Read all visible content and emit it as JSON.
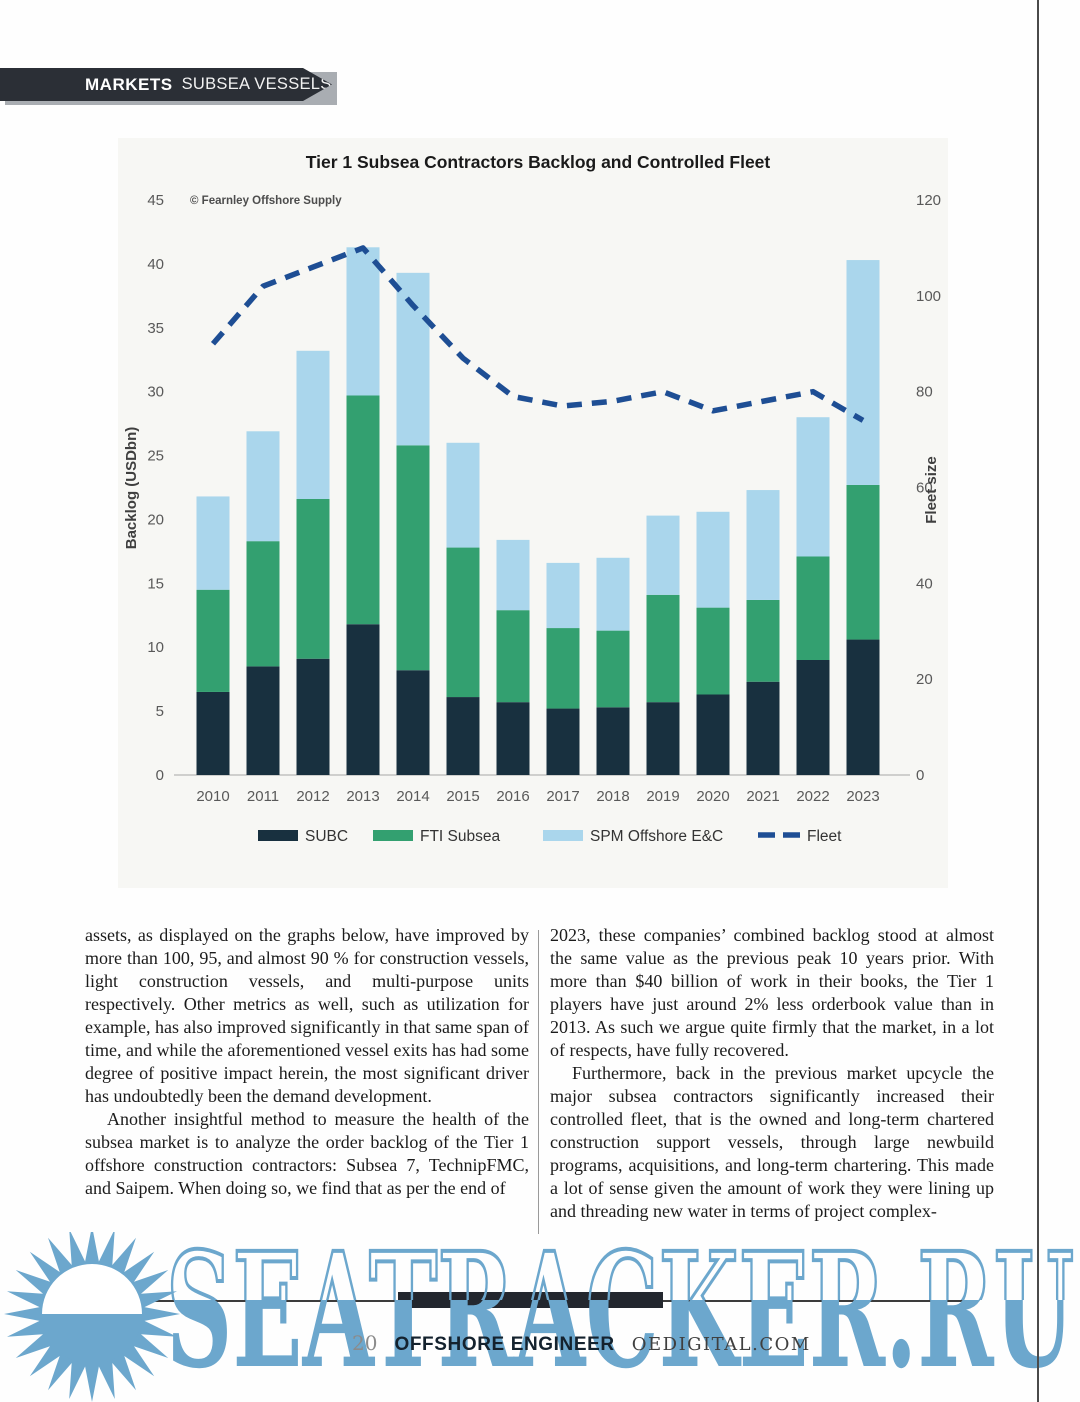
{
  "header": {
    "markets_label": "MARKETS",
    "section_label": "SUBSEA VESSELS"
  },
  "chart_data": {
    "type": "bar",
    "subtype": "stacked bars with overlay line",
    "title": "Tier 1 Subsea Contractors Backlog and Controlled Fleet",
    "source_note": "© Fearnley Offshore Supply",
    "ylabel_left": "Backlog (USDbn)",
    "ylabel_right": "Fleet size",
    "ylim_left": [
      0,
      45
    ],
    "ylim_right": [
      0,
      120
    ],
    "yticks_left": [
      0,
      5,
      10,
      15,
      20,
      25,
      30,
      35,
      40,
      45
    ],
    "yticks_right": [
      0,
      20,
      40,
      60,
      80,
      100,
      120
    ],
    "grid": "off",
    "legend_position": "bottom",
    "categories": [
      "2010",
      "2011",
      "2012",
      "2013",
      "2014",
      "2015",
      "2016",
      "2017",
      "2018",
      "2019",
      "2020",
      "2021",
      "2022",
      "2023"
    ],
    "series": [
      {
        "name": "SUBC",
        "type": "bar",
        "color": "#18303f",
        "values": [
          6.5,
          8.5,
          9.1,
          11.8,
          8.2,
          6.1,
          5.7,
          5.2,
          5.3,
          5.7,
          6.3,
          7.3,
          9.0,
          10.6
        ]
      },
      {
        "name": "FTI Subsea",
        "type": "bar",
        "color": "#33a070",
        "values": [
          8.0,
          9.8,
          12.5,
          17.9,
          17.6,
          11.7,
          7.2,
          6.3,
          6.0,
          8.4,
          6.8,
          6.4,
          8.1,
          12.1
        ]
      },
      {
        "name": "SPM Offshore E&C",
        "type": "bar",
        "color": "#aad6ec",
        "values": [
          7.3,
          8.6,
          11.6,
          11.6,
          13.5,
          8.2,
          5.5,
          5.1,
          5.7,
          6.2,
          7.5,
          8.6,
          10.9,
          17.6
        ]
      },
      {
        "name": "Fleet",
        "type": "line",
        "axis": "right",
        "color": "#1e4e94",
        "dash": true,
        "values": [
          90,
          102,
          106,
          110,
          98,
          87,
          79,
          77,
          78,
          80,
          76,
          78,
          80,
          74
        ]
      }
    ]
  },
  "article": {
    "left_column": {
      "p1": "assets, as displayed on the graphs below, have improved by more than 100, 95, and almost 90 % for construction vessels, light construction vessels, and multi-purpose units respectively. Other metrics as well, such as utilization for example, has also improved significantly in that same span of time, and while the aforementioned vessel exits has had some degree of positive impact herein, the most significant driver has undoubtedly been the demand development.",
      "p2": "Another insightful method to measure the health of the subsea market is to analyze the order backlog of the Tier 1 offshore construction contractors: Subsea 7, TechnipFMC, and Saipem. When doing so, we find that as per the end of"
    },
    "right_column": {
      "p1": "2023, these companies’ combined backlog stood at almost the same value as the previous peak 10 years prior. With more than $40 billion of work in their books, the Tier 1 players have just around 2% less orderbook value than in 2013. As such we argue quite firmly that the market, in a lot of respects, have fully recovered.",
      "p2": "Furthermore, back in the previous market upcycle the major subsea contractors significantly increased their controlled fleet, that is the owned and long-term chartered construction support vessels, through large newbuild programs, acquisitions, and long-term chartering. This made a lot of sense given the amount of work they were lining up and threading new water in terms of project complex-"
    }
  },
  "footer": {
    "page_number": "20",
    "magazine": "OFFSHORE ENGINEER",
    "website": "OEDIGITAL.COM"
  },
  "watermark": {
    "text": "SEATRACKER.RU",
    "color": "#6ca7cd"
  }
}
